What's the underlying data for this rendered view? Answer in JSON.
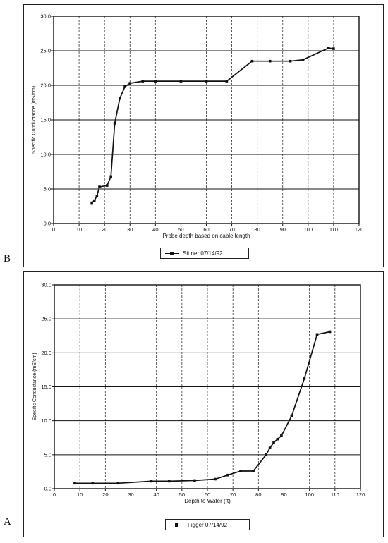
{
  "panels": {
    "b": {
      "letter": "B"
    },
    "a": {
      "letter": "A"
    }
  },
  "chart_data": [
    {
      "type": "line",
      "xlabel": "Probe depth based on cable length",
      "ylabel": "Specific Conductance (mS/cm)",
      "xlim": [
        0,
        120
      ],
      "ylim": [
        0,
        30
      ],
      "xticks": [
        0,
        10,
        20,
        30,
        40,
        50,
        60,
        70,
        80,
        90,
        100,
        110,
        120
      ],
      "yticks": [
        0.0,
        5.0,
        10.0,
        15.0,
        20.0,
        25.0,
        30.0
      ],
      "grid": true,
      "legend_position": "bottom-center",
      "series": [
        {
          "name": "Sittner 07/14/92",
          "x": [
            15,
            16,
            17,
            18,
            21,
            22.5,
            24,
            26,
            28,
            30,
            35,
            40,
            50,
            60,
            68,
            78,
            85,
            93,
            98,
            108,
            110
          ],
          "y": [
            3.0,
            3.3,
            4.0,
            5.3,
            5.5,
            6.8,
            14.5,
            18.1,
            19.8,
            20.3,
            20.6,
            20.6,
            20.6,
            20.6,
            20.6,
            23.5,
            23.5,
            23.5,
            23.7,
            25.4,
            25.3
          ]
        }
      ]
    },
    {
      "type": "line",
      "xlabel": "Depth to Water (ft)",
      "ylabel": "Specific Conductance (mS/cm)",
      "xlim": [
        0,
        120
      ],
      "ylim": [
        0,
        30
      ],
      "xticks": [
        0,
        10,
        20,
        30,
        40,
        50,
        60,
        70,
        80,
        90,
        100,
        110,
        120
      ],
      "yticks": [
        0.0,
        5.0,
        10.0,
        15.0,
        20.0,
        25.0,
        30.0
      ],
      "grid": true,
      "legend_position": "bottom-center",
      "series": [
        {
          "name": "Figger 07/14/92",
          "x": [
            8,
            15,
            25,
            38,
            45,
            55,
            63,
            68,
            73,
            78,
            83,
            84.5,
            86,
            87.5,
            89,
            93,
            98,
            103,
            108
          ],
          "y": [
            0.8,
            0.8,
            0.8,
            1.1,
            1.1,
            1.2,
            1.4,
            2.0,
            2.6,
            2.6,
            5.0,
            6.0,
            6.8,
            7.3,
            7.8,
            10.7,
            16.2,
            22.7,
            23.1
          ]
        }
      ]
    }
  ]
}
